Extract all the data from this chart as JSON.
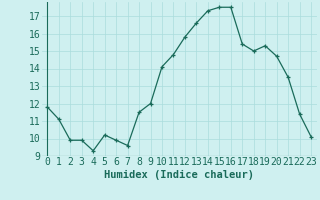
{
  "x": [
    0,
    1,
    2,
    3,
    4,
    5,
    6,
    7,
    8,
    9,
    10,
    11,
    12,
    13,
    14,
    15,
    16,
    17,
    18,
    19,
    20,
    21,
    22,
    23
  ],
  "y": [
    11.8,
    11.1,
    9.9,
    9.9,
    9.3,
    10.2,
    9.9,
    9.6,
    11.5,
    12.0,
    14.1,
    14.8,
    15.8,
    16.6,
    17.3,
    17.5,
    17.5,
    15.4,
    15.0,
    15.3,
    14.7,
    13.5,
    11.4,
    10.1
  ],
  "line_color": "#1a6b5a",
  "marker": "+",
  "marker_size": 3,
  "bg_color": "#cff0f0",
  "grid_color": "#aadddd",
  "xlabel": "Humidex (Indice chaleur)",
  "xlabel_fontsize": 7.5,
  "tick_fontsize": 7,
  "ylim": [
    9,
    17.8
  ],
  "xlim": [
    -0.5,
    23.5
  ],
  "yticks": [
    9,
    10,
    11,
    12,
    13,
    14,
    15,
    16,
    17
  ],
  "xtick_labels": [
    "0",
    "1",
    "2",
    "3",
    "4",
    "5",
    "6",
    "7",
    "8",
    "9",
    "10",
    "11",
    "12",
    "13",
    "14",
    "15",
    "16",
    "17",
    "18",
    "19",
    "20",
    "21",
    "22",
    "23"
  ]
}
